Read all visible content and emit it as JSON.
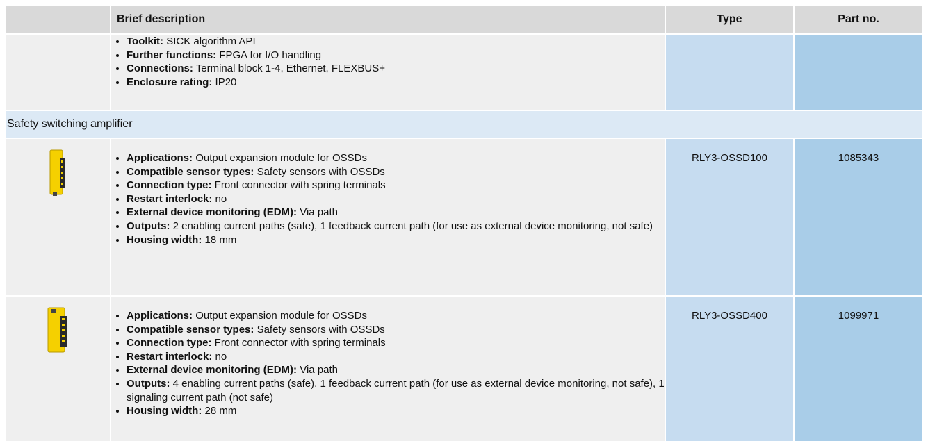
{
  "header": {
    "columns": [
      "Brief description",
      "Type",
      "Part no."
    ]
  },
  "continued_row": {
    "items": [
      {
        "label": "Toolkit:",
        "text": "SICK algorithm API"
      },
      {
        "label": "Further functions:",
        "text": "FPGA for I/O handling"
      },
      {
        "label": "Connections:",
        "text": "Terminal block 1-4, Ethernet, FLEXBUS+"
      },
      {
        "label": "Enclosure rating:",
        "text": "IP20"
      }
    ]
  },
  "section": {
    "title": "Safety switching amplifier"
  },
  "products": [
    {
      "items": [
        {
          "label": "Applications:",
          "text": "Output expansion module for OSSDs"
        },
        {
          "label": "Compatible sensor types:",
          "text": "Safety sensors with OSSDs"
        },
        {
          "label": "Connection type:",
          "text": "Front connector with spring terminals"
        },
        {
          "label": "Restart interlock:",
          "text": "no"
        },
        {
          "label": "External device monitoring (EDM):",
          "text": "Via path"
        },
        {
          "label": "Outputs:",
          "text": "2 enabling current paths (safe), 1 feedback current path (for use as external device monitoring, not safe)"
        },
        {
          "label": "Housing width:",
          "text": "18 mm"
        }
      ],
      "type": "RLY3-OSSD100",
      "part_no": "1085343"
    },
    {
      "items": [
        {
          "label": "Applications:",
          "text": "Output expansion module for OSSDs"
        },
        {
          "label": "Compatible sensor types:",
          "text": "Safety sensors with OSSDs"
        },
        {
          "label": "Connection type:",
          "text": "Front connector with spring terminals"
        },
        {
          "label": "Restart interlock:",
          "text": "no"
        },
        {
          "label": "External device monitoring (EDM):",
          "text": "Via path"
        },
        {
          "label": "Outputs:",
          "text": "4 enabling current paths (safe), 1 feedback current path (for use as external device monitoring, not safe), 1 signaling current path (not safe)"
        },
        {
          "label": "Housing width:",
          "text": "28 mm"
        }
      ],
      "type": "RLY3-OSSD400",
      "part_no": "1099971"
    }
  ]
}
